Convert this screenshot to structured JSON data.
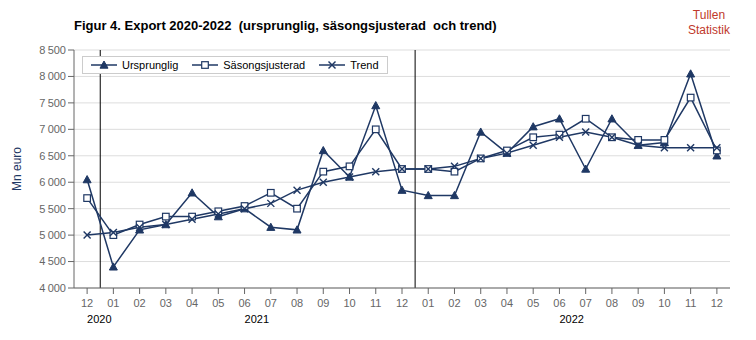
{
  "chart_data": {
    "type": "line",
    "title": "Figur 4. Export 2020-2022  (ursprunglig, säsongsjusterad  och trend)",
    "annotations": [
      {
        "text": "Tullen\nStatistik",
        "color": "#c0392b"
      }
    ],
    "ylabel": "Mn euro",
    "categories": [
      "12",
      "01",
      "02",
      "03",
      "04",
      "05",
      "06",
      "07",
      "08",
      "09",
      "10",
      "11",
      "12",
      "01",
      "02",
      "03",
      "04",
      "05",
      "06",
      "07",
      "08",
      "09",
      "10",
      "11",
      "12"
    ],
    "year_labels": [
      {
        "label": "2020",
        "x_index": 0
      },
      {
        "label": "2021",
        "x_index": 6
      },
      {
        "label": "2022",
        "x_index": 18
      }
    ],
    "year_dividers": [
      0.5,
      12.5
    ],
    "series": [
      {
        "name": "Ursprunglig",
        "color": "#1F3864",
        "marker": "triangle",
        "values": [
          6050,
          4400,
          5100,
          5200,
          5800,
          5350,
          5500,
          5150,
          5100,
          6600,
          6100,
          7450,
          5850,
          5750,
          5750,
          6950,
          6550,
          7050,
          7200,
          6250,
          7200,
          6700,
          6750,
          8050,
          6500
        ]
      },
      {
        "name": "Säsongsjusterad",
        "color": "#1F3864",
        "marker": "square",
        "values": [
          5700,
          5000,
          5200,
          5350,
          5350,
          5450,
          5550,
          5800,
          5500,
          6200,
          6300,
          7000,
          6250,
          6250,
          6200,
          6450,
          6600,
          6850,
          6900,
          7200,
          6850,
          6800,
          6800,
          7600,
          6600
        ]
      },
      {
        "name": "Trend",
        "color": "#1F3864",
        "marker": "x",
        "values": [
          5000,
          5050,
          5150,
          5200,
          5300,
          5400,
          5500,
          5600,
          5850,
          6000,
          6100,
          6200,
          6250,
          6250,
          6300,
          6450,
          6550,
          6700,
          6850,
          6950,
          6850,
          6700,
          6650,
          6650,
          6650
        ]
      }
    ],
    "ylim": [
      4000,
      8500
    ],
    "yticks": [
      {
        "value": 4000,
        "label": "4 000"
      },
      {
        "value": 4500,
        "label": "4 500"
      },
      {
        "value": 5000,
        "label": "5 000"
      },
      {
        "value": 5500,
        "label": "5 500"
      },
      {
        "value": 6000,
        "label": "6 000"
      },
      {
        "value": 6500,
        "label": "6 500"
      },
      {
        "value": 7000,
        "label": "7 000"
      },
      {
        "value": 7500,
        "label": "7 500"
      },
      {
        "value": 8000,
        "label": "8 000"
      },
      {
        "value": 8500,
        "label": "8 500"
      }
    ],
    "grid": true,
    "legend": "upper left"
  }
}
